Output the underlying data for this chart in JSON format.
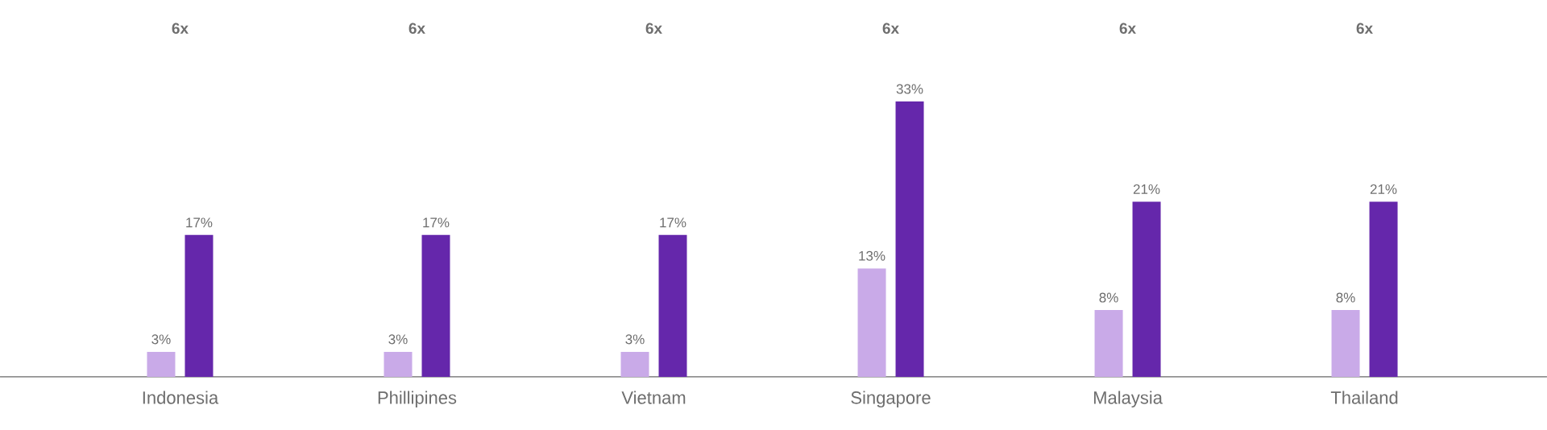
{
  "chart_data": {
    "type": "bar",
    "categories": [
      "Indonesia",
      "Phillipines",
      "Vietnam",
      "Singapore",
      "Malaysia",
      "Thailand"
    ],
    "series": [
      {
        "color": "#c9aae8",
        "values": [
          3,
          3,
          3,
          13,
          8,
          8
        ],
        "value_labels": [
          "3%",
          "3%",
          "3%",
          "13%",
          "8%",
          "8%"
        ]
      },
      {
        "color": "#6527ab",
        "values": [
          17,
          17,
          17,
          33,
          21,
          21
        ],
        "value_labels": [
          "17%",
          "17%",
          "17%",
          "33%",
          "21%",
          "21%"
        ]
      }
    ],
    "annotations": [
      "6x",
      "6x",
      "6x",
      "6x",
      "6x",
      "6x"
    ],
    "grid": false
  }
}
